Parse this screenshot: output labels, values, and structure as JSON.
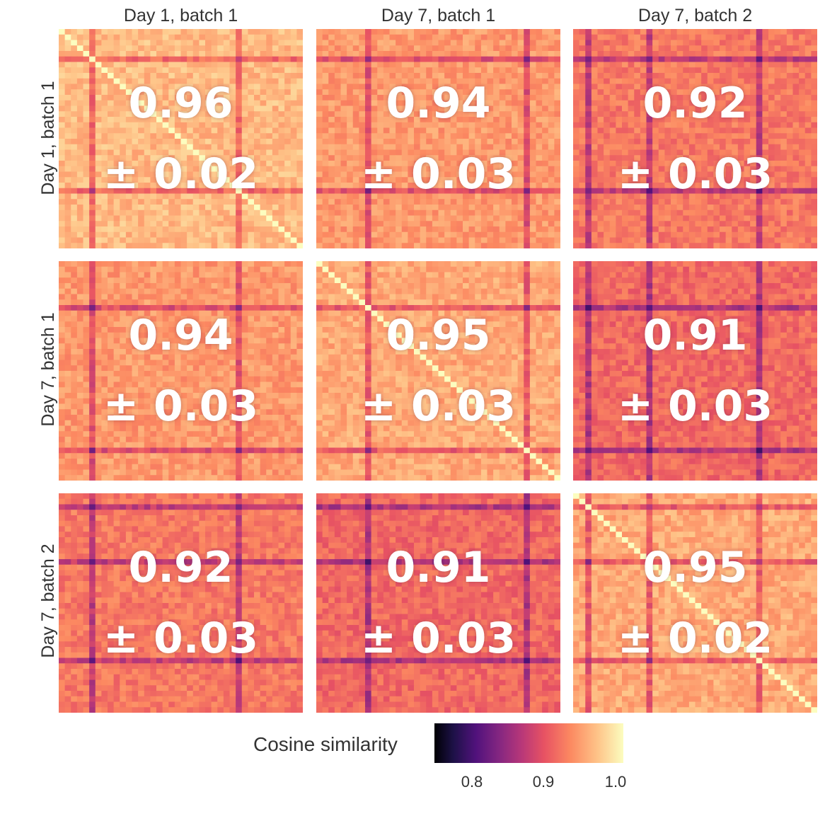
{
  "chart_data": {
    "type": "heatmap",
    "title": "",
    "columns": [
      "Day 1, batch 1",
      "Day 7, batch 1",
      "Day 7, batch 2"
    ],
    "rows": [
      "Day 1, batch 1",
      "Day 7, batch 1",
      "Day 7, batch 2"
    ],
    "values": [
      [
        {
          "mean": "0.96",
          "sd": "± 0.02",
          "mean_value": 0.96,
          "sd_value": 0.02
        },
        {
          "mean": "0.94",
          "sd": "± 0.03",
          "mean_value": 0.94,
          "sd_value": 0.03
        },
        {
          "mean": "0.92",
          "sd": "± 0.03",
          "mean_value": 0.92,
          "sd_value": 0.03
        }
      ],
      [
        {
          "mean": "0.94",
          "sd": "± 0.03",
          "mean_value": 0.94,
          "sd_value": 0.03
        },
        {
          "mean": "0.95",
          "sd": "± 0.03",
          "mean_value": 0.95,
          "sd_value": 0.03
        },
        {
          "mean": "0.91",
          "sd": "± 0.03",
          "mean_value": 0.91,
          "sd_value": 0.03
        }
      ],
      [
        {
          "mean": "0.92",
          "sd": "± 0.03",
          "mean_value": 0.92,
          "sd_value": 0.03
        },
        {
          "mean": "0.91",
          "sd": "± 0.03",
          "mean_value": 0.91,
          "sd_value": 0.03
        },
        {
          "mean": "0.95",
          "sd": "± 0.02",
          "mean_value": 0.95,
          "sd_value": 0.02
        }
      ]
    ],
    "colorbar": {
      "label": "Cosine similarity",
      "ticks": [
        "0.8",
        "0.9",
        "1.0"
      ],
      "range": [
        0.75,
        1.0
      ],
      "colormap": "magma"
    }
  },
  "colors": {
    "text": "#333333",
    "annotation": "#ffffff"
  }
}
